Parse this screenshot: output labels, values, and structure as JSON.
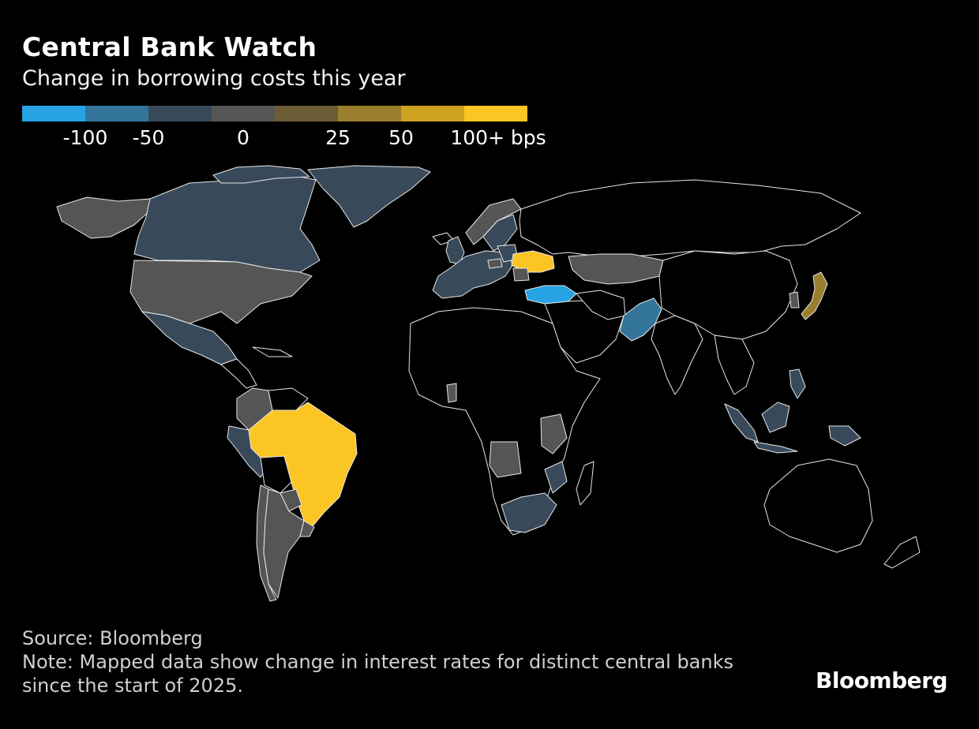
{
  "header": {
    "title": "Central Bank Watch",
    "subtitle": "Change in borrowing costs this year"
  },
  "legend": {
    "colors": [
      "#27a3e3",
      "#33759a",
      "#384a5a",
      "#555555",
      "#6b5c36",
      "#9a7d2d",
      "#cda21f",
      "#fbc524"
    ],
    "labels": [
      "-100",
      "-50",
      "0",
      "25",
      "50",
      "100+ bps"
    ]
  },
  "map_colors": {
    "background": "#000000",
    "border": "#e8e8e8",
    "no_data": "#000000"
  },
  "countries": [
    {
      "name": "Canada",
      "category": "-50 to 0"
    },
    {
      "name": "Greenland",
      "category": "-50 to 0"
    },
    {
      "name": "United States",
      "category": "0"
    },
    {
      "name": "Alaska",
      "category": "0"
    },
    {
      "name": "Mexico",
      "category": "-50 to 0"
    },
    {
      "name": "Colombia",
      "category": "0"
    },
    {
      "name": "Peru",
      "category": "-50 to 0"
    },
    {
      "name": "Chile",
      "category": "0"
    },
    {
      "name": "Argentina",
      "category": "0"
    },
    {
      "name": "Brazil",
      "category": "100+ bps"
    },
    {
      "name": "Uruguay",
      "category": "0"
    },
    {
      "name": "Paraguay",
      "category": "0"
    },
    {
      "name": "United Kingdom",
      "category": "-50 to 0"
    },
    {
      "name": "Eurozone",
      "category": "-50 to 0"
    },
    {
      "name": "Norway",
      "category": "0"
    },
    {
      "name": "Sweden",
      "category": "-50 to 0"
    },
    {
      "name": "Poland",
      "category": "-50 to 0"
    },
    {
      "name": "Ukraine",
      "category": "100+ bps"
    },
    {
      "name": "Turkey",
      "category": "-100"
    },
    {
      "name": "Russia",
      "category": "no data"
    },
    {
      "name": "Kazakhstan",
      "category": "0"
    },
    {
      "name": "Pakistan",
      "category": "-50"
    },
    {
      "name": "India",
      "category": "no data"
    },
    {
      "name": "Japan",
      "category": "25 to 50"
    },
    {
      "name": "Indonesia",
      "category": "-50 to 0"
    },
    {
      "name": "Philippines",
      "category": "-50 to 0"
    },
    {
      "name": "South Africa",
      "category": "-50 to 0"
    },
    {
      "name": "Angola",
      "category": "0"
    },
    {
      "name": "Kenya",
      "category": "0"
    }
  ],
  "footer": {
    "source": "Source: Bloomberg",
    "note_line1": "Note: Mapped data show change in interest rates for distinct central banks",
    "note_line2": "since the start of 2025."
  },
  "brand": "Bloomberg"
}
